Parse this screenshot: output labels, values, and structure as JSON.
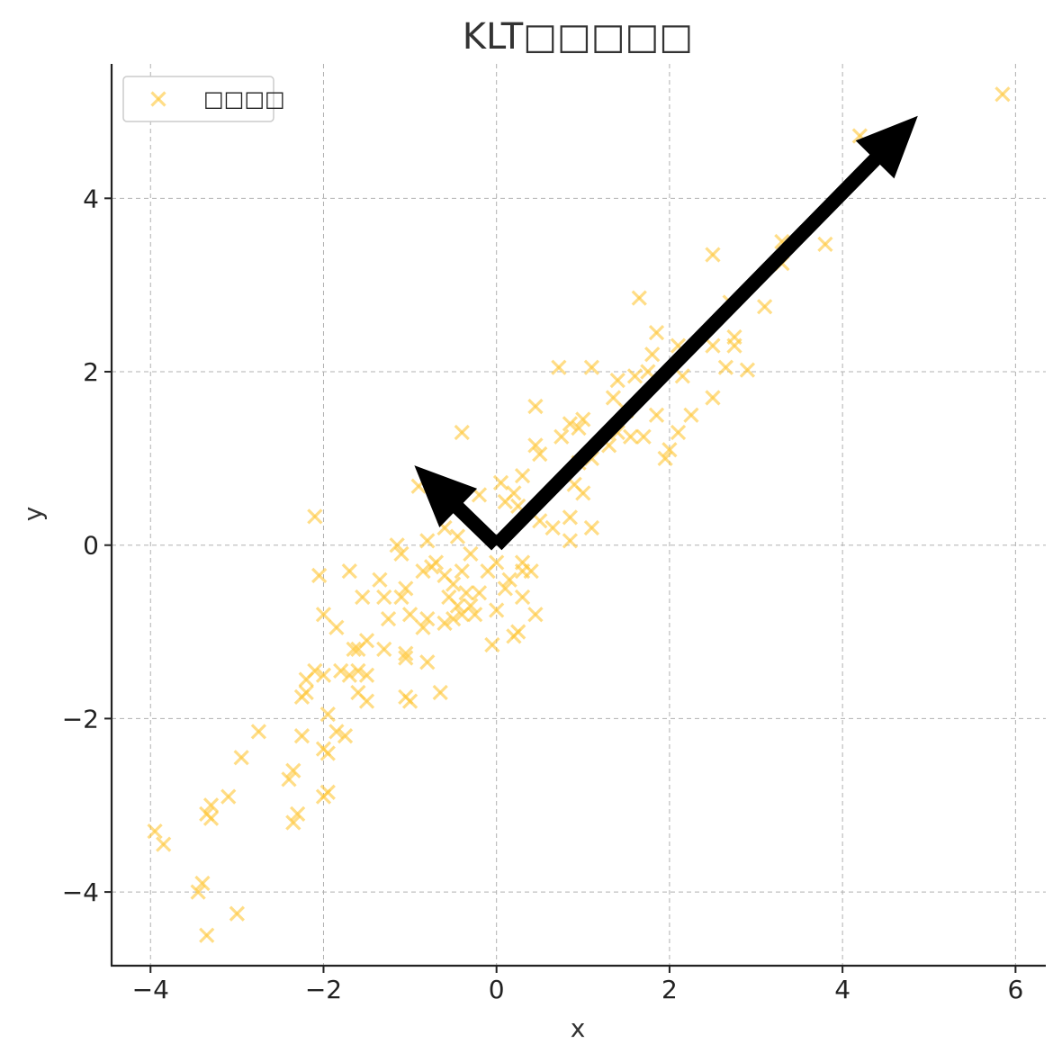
{
  "chart_data": {
    "type": "scatter",
    "title": "KLT□□□□□",
    "xlabel": "x",
    "ylabel": "y",
    "xlim": [
      -4.45,
      6.35
    ],
    "ylim": [
      -4.85,
      5.55
    ],
    "xticks": [
      -4,
      -2,
      0,
      2,
      4,
      6
    ],
    "yticks": [
      -4,
      -2,
      0,
      2,
      4
    ],
    "xtick_labels": [
      "−4",
      "−2",
      "0",
      "2",
      "4",
      "6"
    ],
    "ytick_labels": [
      "−4",
      "−2",
      "0",
      "2",
      "4"
    ],
    "grid": true,
    "legend": {
      "position": "top-left",
      "entries": [
        "□□□□"
      ]
    },
    "series": [
      {
        "name": "□□□□",
        "marker": "x",
        "color": "#FFC83D",
        "points": [
          [
            5.85,
            5.2
          ],
          [
            4.2,
            4.72
          ],
          [
            3.8,
            3.47
          ],
          [
            3.3,
            3.5
          ],
          [
            3.3,
            3.25
          ],
          [
            3.1,
            2.75
          ],
          [
            2.5,
            3.35
          ],
          [
            2.7,
            2.8
          ],
          [
            2.75,
            2.4
          ],
          [
            2.75,
            2.3
          ],
          [
            2.65,
            2.05
          ],
          [
            2.9,
            2.02
          ],
          [
            2.5,
            2.3
          ],
          [
            2.5,
            1.7
          ],
          [
            2.1,
            2.3
          ],
          [
            2.15,
            1.95
          ],
          [
            2.25,
            1.5
          ],
          [
            2.1,
            1.3
          ],
          [
            1.85,
            2.45
          ],
          [
            1.8,
            2.2
          ],
          [
            1.75,
            2.0
          ],
          [
            1.65,
            2.85
          ],
          [
            1.6,
            1.95
          ],
          [
            1.85,
            1.5
          ],
          [
            1.7,
            1.25
          ],
          [
            1.95,
            1.0
          ],
          [
            2.0,
            1.1
          ],
          [
            1.4,
            1.9
          ],
          [
            1.35,
            1.7
          ],
          [
            1.5,
            1.55
          ],
          [
            1.4,
            1.3
          ],
          [
            1.3,
            1.15
          ],
          [
            1.55,
            1.25
          ],
          [
            1.1,
            2.05
          ],
          [
            0.72,
            2.05
          ],
          [
            1.0,
            1.45
          ],
          [
            0.95,
            1.35
          ],
          [
            0.85,
            1.4
          ],
          [
            0.75,
            1.25
          ],
          [
            1.1,
            1.0
          ],
          [
            0.95,
            0.95
          ],
          [
            0.9,
            0.7
          ],
          [
            1.0,
            0.6
          ],
          [
            0.45,
            1.6
          ],
          [
            0.45,
            1.15
          ],
          [
            0.5,
            1.05
          ],
          [
            0.3,
            0.8
          ],
          [
            0.2,
            0.6
          ],
          [
            0.25,
            0.45
          ],
          [
            0.1,
            0.5
          ],
          [
            0.05,
            0.72
          ],
          [
            0.85,
            0.32
          ],
          [
            0.65,
            0.2
          ],
          [
            0.5,
            0.28
          ],
          [
            0.85,
            0.05
          ],
          [
            1.1,
            0.2
          ],
          [
            -0.4,
            1.3
          ],
          [
            -0.5,
            0.55
          ],
          [
            -0.2,
            0.58
          ],
          [
            -0.9,
            0.68
          ],
          [
            -0.6,
            0.2
          ],
          [
            -0.45,
            0.1
          ],
          [
            -0.3,
            -0.1
          ],
          [
            0.3,
            -0.2
          ],
          [
            0.3,
            -0.3
          ],
          [
            0.4,
            -0.3
          ],
          [
            0.15,
            -0.4
          ],
          [
            0.0,
            -0.2
          ],
          [
            -0.1,
            -0.3
          ],
          [
            0.1,
            -0.5
          ],
          [
            -0.2,
            -0.55
          ],
          [
            0.3,
            -0.6
          ],
          [
            0.45,
            -0.8
          ],
          [
            0.0,
            -0.75
          ],
          [
            0.25,
            -1.0
          ],
          [
            0.2,
            -1.05
          ],
          [
            -0.05,
            -1.15
          ],
          [
            -1.15,
            0.0
          ],
          [
            -1.1,
            -0.1
          ],
          [
            -0.8,
            0.05
          ],
          [
            -0.7,
            -0.2
          ],
          [
            -0.75,
            -0.25
          ],
          [
            -0.85,
            -0.3
          ],
          [
            -0.6,
            -0.35
          ],
          [
            -0.5,
            -0.45
          ],
          [
            -0.4,
            -0.3
          ],
          [
            -0.35,
            -0.55
          ],
          [
            -0.55,
            -0.6
          ],
          [
            -0.45,
            -0.7
          ],
          [
            -0.3,
            -0.7
          ],
          [
            -0.25,
            -0.8
          ],
          [
            -0.4,
            -0.8
          ],
          [
            -0.5,
            -0.85
          ],
          [
            -0.6,
            -0.9
          ],
          [
            -0.8,
            -0.85
          ],
          [
            -0.85,
            -0.95
          ],
          [
            -1.05,
            -0.5
          ],
          [
            -1.1,
            -0.6
          ],
          [
            -1.3,
            -0.6
          ],
          [
            -1.35,
            -0.4
          ],
          [
            -1.0,
            -0.8
          ],
          [
            -1.25,
            -0.85
          ],
          [
            -1.05,
            -1.25
          ],
          [
            -1.05,
            -1.3
          ],
          [
            -0.8,
            -1.35
          ],
          [
            -0.65,
            -1.7
          ],
          [
            -1.05,
            -1.75
          ],
          [
            -1.0,
            -1.8
          ],
          [
            -1.3,
            -1.2
          ],
          [
            -1.5,
            -1.1
          ],
          [
            -1.7,
            -0.3
          ],
          [
            -1.55,
            -0.6
          ],
          [
            -1.6,
            -1.2
          ],
          [
            -1.65,
            -1.2
          ],
          [
            -1.85,
            -0.95
          ],
          [
            -2.0,
            -0.8
          ],
          [
            -1.5,
            -1.5
          ],
          [
            -1.6,
            -1.45
          ],
          [
            -1.7,
            -1.5
          ],
          [
            -1.8,
            -1.45
          ],
          [
            -2.0,
            -1.5
          ],
          [
            -2.1,
            -1.45
          ],
          [
            -2.2,
            -1.55
          ],
          [
            -2.2,
            -1.7
          ],
          [
            -2.25,
            -1.75
          ],
          [
            -1.6,
            -1.7
          ],
          [
            -1.5,
            -1.8
          ],
          [
            -1.75,
            -2.2
          ],
          [
            -1.85,
            -2.15
          ],
          [
            -1.95,
            -1.95
          ],
          [
            -2.25,
            -2.2
          ],
          [
            -2.0,
            -2.35
          ],
          [
            -1.95,
            -2.4
          ],
          [
            -2.05,
            -0.35
          ],
          [
            -2.1,
            0.33
          ],
          [
            -2.0,
            -2.9
          ],
          [
            -1.95,
            -2.85
          ],
          [
            -2.35,
            -2.6
          ],
          [
            -2.4,
            -2.7
          ],
          [
            -2.75,
            -2.15
          ],
          [
            -2.95,
            -2.45
          ],
          [
            -3.1,
            -2.9
          ],
          [
            -2.3,
            -3.1
          ],
          [
            -2.35,
            -3.2
          ],
          [
            -3.3,
            -3.0
          ],
          [
            -3.35,
            -3.1
          ],
          [
            -3.3,
            -3.15
          ],
          [
            -3.95,
            -3.3
          ],
          [
            -3.85,
            -3.45
          ],
          [
            -3.4,
            -3.9
          ],
          [
            -3.45,
            -4.0
          ],
          [
            -3.35,
            -4.5
          ],
          [
            -3.0,
            -4.25
          ]
        ]
      }
    ],
    "annotations": [
      {
        "type": "arrow",
        "from": [
          0,
          0
        ],
        "to": [
          4.87,
          4.95
        ],
        "color": "#000000"
      },
      {
        "type": "arrow",
        "from": [
          0,
          0
        ],
        "to": [
          -0.95,
          0.92
        ],
        "color": "#000000"
      }
    ]
  }
}
